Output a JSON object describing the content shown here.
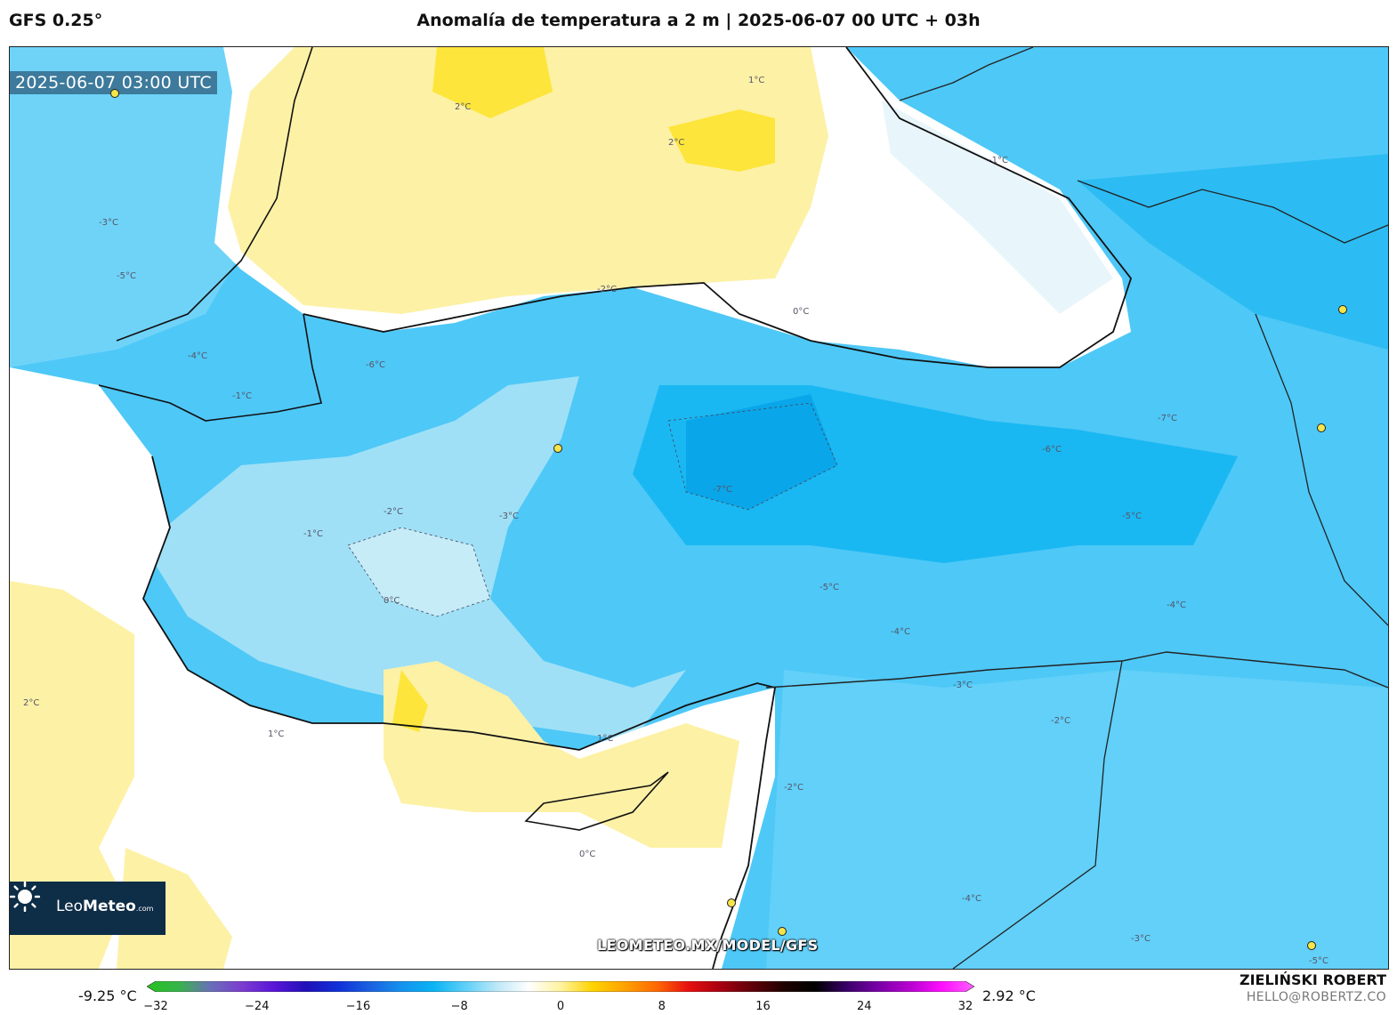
{
  "header": {
    "model": "GFS 0.25°",
    "title": "Anomalía de temperatura a 2 m | 2025-06-07 00 UTC + 03h"
  },
  "map": {
    "timestamp": "2025-06-07 03:00 UTC",
    "watermark_url": "LEOMETEO.MX/MODEL/GFS",
    "logo": {
      "name": "LeoMeteo",
      "prefix": "Leo",
      "bold": "Meteo",
      "suffix": ".com"
    },
    "contour_labels": [
      "2°C",
      "2°C",
      "2°C",
      "1°C",
      "0°C",
      "-1°C",
      "-2°C",
      "-3°C",
      "-4°C",
      "-5°C",
      "-6°C",
      "-7°C",
      "-3°C",
      "-4°C",
      "-5°C",
      "1°C",
      "0°C",
      "-1°C",
      "-2°C",
      "-3°C",
      "-4°C",
      "-5°C",
      "-6°C",
      "-7°C",
      "-2°C",
      "-3°C",
      "-4°C",
      "-5°C",
      "0°C",
      "1°C",
      "-1°C",
      "-2°C"
    ],
    "colors": {
      "sea_white": "#ffffff",
      "pos_1": "#fdf1a6",
      "pos_2": "#fde53b",
      "neg_1": "#b8e6f6",
      "neg_2": "#7dd6f6",
      "neg_3": "#48c8f7",
      "neg_4": "#17b5f3",
      "neg_5": "#0aa6ea"
    }
  },
  "colorbar": {
    "min_label": "-9.25 °C",
    "max_label": "2.92 °C",
    "ticks": [
      "−32",
      "−24",
      "−16",
      "−8",
      "0",
      "8",
      "16",
      "24",
      "32"
    ],
    "range": [
      -32,
      32
    ],
    "stops": [
      "#26c21f",
      "#37b44a",
      "#6a6fb8",
      "#7b3ccf",
      "#5a14d8",
      "#2010b8",
      "#1030d8",
      "#1a60e0",
      "#1592ee",
      "#0ab4f4",
      "#5dd0f8",
      "#bde8f8",
      "#ffffff",
      "#fff3a0",
      "#ffd400",
      "#ffa200",
      "#ff6a00",
      "#e81010",
      "#a80010",
      "#600008",
      "#200000",
      "#000000",
      "#3a006a",
      "#7a00a8",
      "#b800d0",
      "#ff10ff",
      "#ff60ff"
    ]
  },
  "credits": {
    "author": "ZIELIŃSKI ROBERT",
    "email": "HELLO@ROBERTZ.CO"
  }
}
